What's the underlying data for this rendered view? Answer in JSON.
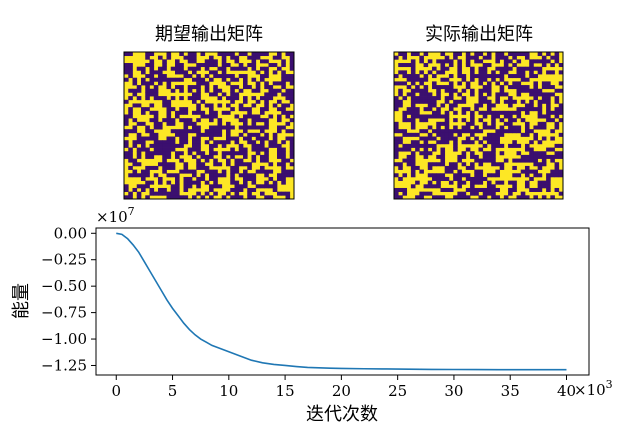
{
  "chart_data": [
    {
      "type": "heatmap",
      "title": "期望输出矩阵",
      "rows": 40,
      "cols": 40,
      "palette": [
        "#3b0f6f",
        "#fde725"
      ],
      "values_description_visible": "random binary pattern (yellow/purple)"
    },
    {
      "type": "heatmap",
      "title": "实际输出矩阵",
      "rows": 40,
      "cols": 40,
      "palette": [
        "#3b0f6f",
        "#fde725"
      ],
      "values_description_visible": "random binary pattern (yellow/purple)"
    },
    {
      "type": "line",
      "title": "",
      "xlabel": "迭代次数",
      "ylabel": "能量",
      "x_multiplier_label": "×10",
      "x_multiplier_exp": "3",
      "y_multiplier_label": "×10",
      "y_multiplier_exp": "7",
      "xlim": [
        -1.8,
        42
      ],
      "ylim": [
        -1.34,
        0.05
      ],
      "xticks": [
        0,
        5,
        10,
        15,
        20,
        25,
        30,
        35,
        40
      ],
      "xtick_labels": [
        "0",
        "5",
        "10",
        "15",
        "20",
        "25",
        "30",
        "35",
        "40"
      ],
      "yticks": [
        0.0,
        -0.25,
        -0.5,
        -0.75,
        -1.0,
        -1.25
      ],
      "ytick_labels": [
        "0.00",
        "−0.25",
        "−0.50",
        "−0.75",
        "−1.00",
        "−1.25"
      ],
      "grid": false,
      "line_color": "#1f77b4",
      "series": [
        {
          "x": [
            0,
            0.5,
            1,
            1.5,
            2,
            2.5,
            3,
            3.5,
            4,
            4.5,
            5,
            5.5,
            6,
            6.5,
            7,
            7.5,
            8,
            8.5,
            9,
            9.5,
            10,
            11,
            12,
            13,
            14,
            15,
            16,
            17,
            18,
            19,
            20,
            22,
            24,
            26,
            28,
            30,
            32,
            34,
            36,
            38,
            40
          ],
          "y": [
            0.0,
            -0.01,
            -0.05,
            -0.11,
            -0.18,
            -0.27,
            -0.36,
            -0.45,
            -0.54,
            -0.63,
            -0.71,
            -0.78,
            -0.85,
            -0.91,
            -0.96,
            -1.0,
            -1.03,
            -1.06,
            -1.08,
            -1.1,
            -1.12,
            -1.16,
            -1.2,
            -1.225,
            -1.24,
            -1.25,
            -1.26,
            -1.268,
            -1.272,
            -1.276,
            -1.278,
            -1.281,
            -1.283,
            -1.285,
            -1.287,
            -1.288,
            -1.289,
            -1.29,
            -1.29,
            -1.29,
            -1.29
          ]
        }
      ]
    }
  ]
}
